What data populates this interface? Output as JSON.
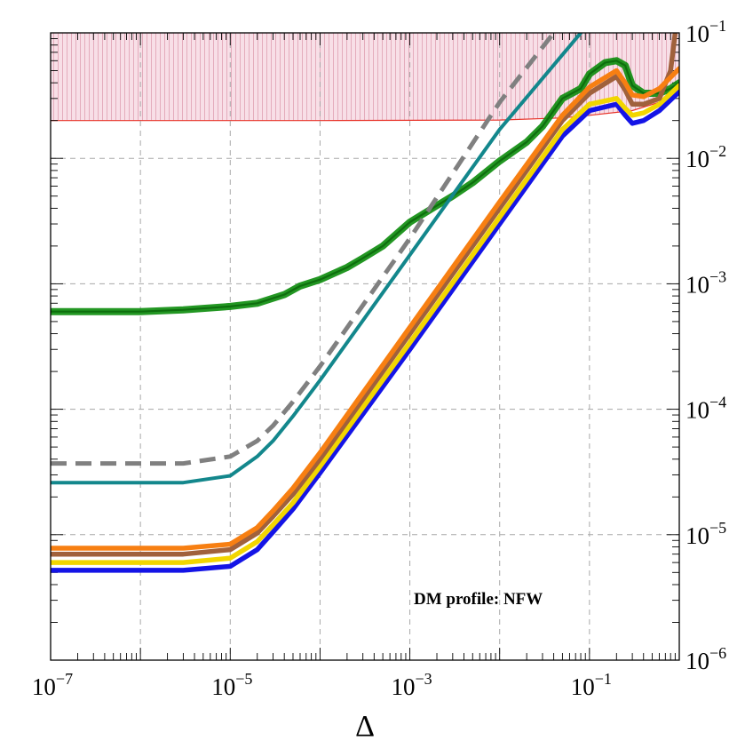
{
  "chart_data": {
    "type": "line",
    "title": "",
    "xlabel": "Δ",
    "ylabel": "",
    "x_scale": "log",
    "y_scale": "log",
    "xlim": [
      1e-07,
      1
    ],
    "ylim": [
      1e-06,
      0.1
    ],
    "grid": true,
    "x_tick_labels": [
      {
        "base": "10",
        "exp": "−7"
      },
      {
        "base": "10",
        "exp": "−5"
      },
      {
        "base": "10",
        "exp": "−3"
      },
      {
        "base": "10",
        "exp": "−1"
      }
    ],
    "y_tick_labels": [
      {
        "base": "10",
        "exp": "−1"
      },
      {
        "base": "10",
        "exp": "−2"
      },
      {
        "base": "10",
        "exp": "−3"
      },
      {
        "base": "10",
        "exp": "−4"
      },
      {
        "base": "10",
        "exp": "−5"
      },
      {
        "base": "10",
        "exp": "−6"
      }
    ],
    "annotation": "DM profile: NFW",
    "excluded_region": {
      "color": "#f7d9e3",
      "edge_color": "#e8342a",
      "boundary": [
        [
          1e-07,
          0.02
        ],
        [
          0.0001,
          0.02
        ],
        [
          0.01,
          0.0202
        ],
        [
          0.05,
          0.021
        ],
        [
          0.1,
          0.022
        ],
        [
          0.3,
          0.024
        ],
        [
          0.6,
          0.028
        ],
        [
          1,
          0.034
        ]
      ]
    },
    "series": [
      {
        "name": "green",
        "color": "#0b8c0b",
        "style": "thick-double",
        "points": [
          [
            1e-07,
            0.0006
          ],
          [
            1e-06,
            0.0006
          ],
          [
            3e-06,
            0.00062
          ],
          [
            1e-05,
            0.00066
          ],
          [
            2e-05,
            0.0007
          ],
          [
            4e-05,
            0.00082
          ],
          [
            6e-05,
            0.00096
          ],
          [
            0.0001,
            0.00108
          ],
          [
            0.0002,
            0.00135
          ],
          [
            0.0003,
            0.0016
          ],
          [
            0.0005,
            0.002
          ],
          [
            0.001,
            0.0031
          ],
          [
            0.002,
            0.0042
          ],
          [
            0.003,
            0.005
          ],
          [
            0.005,
            0.0064
          ],
          [
            0.01,
            0.0095
          ],
          [
            0.02,
            0.0135
          ],
          [
            0.03,
            0.018
          ],
          [
            0.05,
            0.03
          ],
          [
            0.08,
            0.036
          ],
          [
            0.1,
            0.047
          ],
          [
            0.15,
            0.058
          ],
          [
            0.2,
            0.06
          ],
          [
            0.25,
            0.055
          ],
          [
            0.3,
            0.038
          ],
          [
            0.4,
            0.033
          ],
          [
            0.6,
            0.033
          ],
          [
            0.8,
            0.036
          ],
          [
            1,
            0.04
          ]
        ]
      },
      {
        "name": "teal",
        "color": "#13878c",
        "style": "solid",
        "points": [
          [
            1e-07,
            2.6e-05
          ],
          [
            3e-06,
            2.6e-05
          ],
          [
            1e-05,
            2.95e-05
          ],
          [
            2e-05,
            4.2e-05
          ],
          [
            3e-05,
            5.6e-05
          ],
          [
            5e-05,
            8.8e-05
          ],
          [
            0.0001,
            0.00017
          ],
          [
            0.001,
            0.0017
          ],
          [
            0.01,
            0.017
          ],
          [
            0.08,
            0.1
          ]
        ]
      },
      {
        "name": "gray-dashed",
        "color": "#808080",
        "style": "dashed",
        "points": [
          [
            1e-07,
            3.7e-05
          ],
          [
            3e-06,
            3.7e-05
          ],
          [
            1e-05,
            4.2e-05
          ],
          [
            2e-05,
            5.6e-05
          ],
          [
            3e-05,
            7.4e-05
          ],
          [
            5e-05,
            0.000115
          ],
          [
            0.0001,
            0.00022
          ],
          [
            0.001,
            0.0023
          ],
          [
            0.01,
            0.028
          ],
          [
            0.04,
            0.1
          ]
        ]
      },
      {
        "name": "blue",
        "color": "#1414e6",
        "style": "solid",
        "points": [
          [
            1e-07,
            5.2e-06
          ],
          [
            3e-06,
            5.2e-06
          ],
          [
            1e-05,
            5.6e-06
          ],
          [
            2e-05,
            7.6e-06
          ],
          [
            3e-05,
            1.05e-05
          ],
          [
            5e-05,
            1.6e-05
          ],
          [
            0.0001,
            3.1e-05
          ],
          [
            0.001,
            0.0003
          ],
          [
            0.01,
            0.003
          ],
          [
            0.05,
            0.015
          ],
          [
            0.1,
            0.024
          ],
          [
            0.2,
            0.027
          ],
          [
            0.25,
            0.022
          ],
          [
            0.3,
            0.019
          ],
          [
            0.4,
            0.02
          ],
          [
            0.6,
            0.024
          ],
          [
            1,
            0.034
          ]
        ]
      },
      {
        "name": "yellow",
        "color": "#f2d600",
        "style": "solid",
        "points": [
          [
            1e-07,
            6e-06
          ],
          [
            3e-06,
            6e-06
          ],
          [
            1e-05,
            6.5e-06
          ],
          [
            2e-05,
            8.8e-06
          ],
          [
            3e-05,
            1.2e-05
          ],
          [
            5e-05,
            1.8e-05
          ],
          [
            0.0001,
            3.5e-05
          ],
          [
            0.001,
            0.00034
          ],
          [
            0.01,
            0.0034
          ],
          [
            0.05,
            0.017
          ],
          [
            0.1,
            0.027
          ],
          [
            0.2,
            0.03
          ],
          [
            0.25,
            0.025
          ],
          [
            0.3,
            0.022
          ],
          [
            0.4,
            0.023
          ],
          [
            0.6,
            0.027
          ],
          [
            1,
            0.038
          ]
        ]
      },
      {
        "name": "brown",
        "color": "#a0613c",
        "style": "solid",
        "points": [
          [
            1e-07,
            7e-06
          ],
          [
            3e-06,
            7e-06
          ],
          [
            1e-05,
            7.6e-06
          ],
          [
            2e-05,
            1.03e-05
          ],
          [
            3e-05,
            1.4e-05
          ],
          [
            5e-05,
            2.1e-05
          ],
          [
            0.0001,
            4e-05
          ],
          [
            0.001,
            0.0004
          ],
          [
            0.01,
            0.004
          ],
          [
            0.05,
            0.02
          ],
          [
            0.1,
            0.033
          ],
          [
            0.2,
            0.045
          ],
          [
            0.25,
            0.035
          ],
          [
            0.3,
            0.027
          ],
          [
            0.4,
            0.027
          ],
          [
            0.6,
            0.03
          ],
          [
            0.8,
            0.05
          ],
          [
            0.9,
            0.1
          ]
        ]
      },
      {
        "name": "orange",
        "color": "#f77f12",
        "style": "solid",
        "points": [
          [
            1e-07,
            7.8e-06
          ],
          [
            3e-06,
            7.8e-06
          ],
          [
            1e-05,
            8.4e-06
          ],
          [
            2e-05,
            1.14e-05
          ],
          [
            3e-05,
            1.55e-05
          ],
          [
            5e-05,
            2.35e-05
          ],
          [
            0.0001,
            4.5e-05
          ],
          [
            0.001,
            0.00045
          ],
          [
            0.01,
            0.0045
          ],
          [
            0.05,
            0.022
          ],
          [
            0.1,
            0.037
          ],
          [
            0.2,
            0.05
          ],
          [
            0.25,
            0.04
          ],
          [
            0.3,
            0.032
          ],
          [
            0.4,
            0.031
          ],
          [
            0.6,
            0.036
          ],
          [
            1,
            0.052
          ]
        ]
      }
    ]
  }
}
